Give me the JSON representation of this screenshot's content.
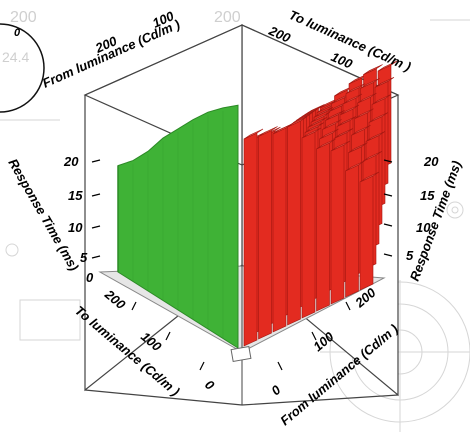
{
  "chart_data": {
    "type": "3d-bar",
    "title": "",
    "left_panel": {
      "color": "#33a12b",
      "axes": {
        "top_axis": {
          "label": "From luminance (Cd/m )",
          "ticks": [
            "200",
            "100"
          ]
        },
        "bottom_axis": {
          "label": "To luminance (Cd/m )",
          "ticks": [
            "200",
            "100",
            "0"
          ]
        },
        "vertical_axis": {
          "label": "Response Time (ms)",
          "ticks": [
            "20",
            "15",
            "10",
            "5",
            "0"
          ]
        }
      },
      "ylim": [
        0,
        22
      ],
      "profile_height_ms": [
        13,
        13.5,
        14.5,
        16,
        17,
        18,
        18.8,
        19.2,
        19.4
      ]
    },
    "right_panel": {
      "color": "#e8261f",
      "axes": {
        "top_axis": {
          "label": "To luminance (Cd/m )",
          "ticks": [
            "200",
            "100"
          ]
        },
        "bottom_axis": {
          "label": "From luminance (Cd/m )",
          "ticks": [
            "200",
            "100",
            "0"
          ]
        },
        "vertical_axis": {
          "label": "Response Time (ms)",
          "ticks": [
            "20",
            "15",
            "10",
            "5"
          ]
        }
      },
      "ylim": [
        0,
        22
      ],
      "column_front_heights_ms": [
        23,
        22.5,
        22,
        22,
        20,
        18,
        17,
        14,
        12
      ],
      "column_back_heights_ms": [
        23,
        23,
        22.8,
        22.5,
        21,
        20.5,
        20,
        19,
        17
      ]
    },
    "background_marks": [
      "200",
      "200",
      "24.4",
      "0"
    ]
  },
  "colors": {
    "green_front": "#3fb236",
    "green_dark": "#2c8a26",
    "red_front": "#e32b20",
    "red_side": "#f05a4d",
    "red_edge": "#a31711",
    "panel_grey": "#e6e6e6"
  }
}
